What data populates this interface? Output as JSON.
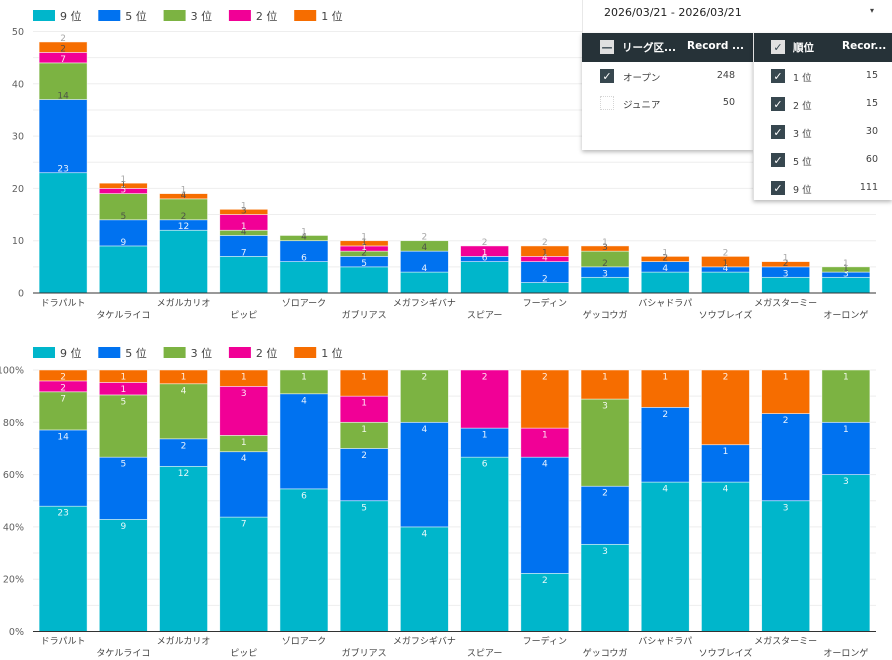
{
  "date_range": {
    "label": "2026/03/21 - 2026/03/21",
    "dropdown_icon": "triangle-down"
  },
  "filters": [
    {
      "header": "リーグ区...",
      "value_header": "Record ...",
      "header_state": "indeterminate",
      "items": [
        {
          "label": "オープン",
          "value": "248",
          "checked": true
        },
        {
          "label": "ジュニア",
          "value": "50",
          "checked": false
        }
      ]
    },
    {
      "header": "順位",
      "value_header": "Recor...",
      "header_state": "checked",
      "items": [
        {
          "label": "1 位",
          "value": "15",
          "checked": true
        },
        {
          "label": "2 位",
          "value": "15",
          "checked": true
        },
        {
          "label": "3 位",
          "value": "30",
          "checked": true
        },
        {
          "label": "5 位",
          "value": "60",
          "checked": true
        },
        {
          "label": "9 位",
          "value": "111",
          "checked": true
        }
      ]
    }
  ],
  "icons": {
    "check": "✓",
    "minus": "—",
    "dropdown": "▾"
  },
  "chart_data": [
    {
      "type": "bar",
      "stacked": true,
      "stack_mode": "absolute",
      "title": "",
      "xlabel": "",
      "ylabel": "",
      "ylim": [
        0,
        50
      ],
      "grid": true,
      "grid_step": 5,
      "yticks": [
        0,
        10,
        20,
        30,
        40,
        50
      ],
      "ytick_labels": [
        "0",
        "10",
        "20",
        "30",
        "40",
        "50"
      ],
      "legend": "top-left",
      "categories": [
        "ドラパルト",
        "タケルライコ",
        "メガルカリオ",
        "ピッピ",
        "ゾロアーク",
        "ガブリアス",
        "メガフシギバナ",
        "スピアー",
        "フーディン",
        "ゲッコウガ",
        "バシャドラパ",
        "ソウブレイズ",
        "メガスターミー",
        "オーロンゲ"
      ],
      "series": [
        {
          "name": "9 位",
          "color": "#00b6cb",
          "values": [
            23,
            9,
            12,
            7,
            6,
            5,
            4,
            6,
            2,
            3,
            4,
            4,
            3,
            3
          ]
        },
        {
          "name": "5 位",
          "color": "#0072f0",
          "values": [
            14,
            5,
            2,
            4,
            4,
            2,
            4,
            1,
            4,
            2,
            2,
            1,
            2,
            1
          ]
        },
        {
          "name": "3 位",
          "color": "#7cb342",
          "values": [
            7,
            5,
            4,
            1,
            1,
            1,
            2,
            0,
            0,
            3,
            0,
            0,
            0,
            1
          ]
        },
        {
          "name": "2 位",
          "color": "#f10096",
          "values": [
            2,
            1,
            0,
            3,
            0,
            1,
            0,
            2,
            1,
            0,
            0,
            0,
            0,
            0
          ]
        },
        {
          "name": "1 位",
          "color": "#f66d00",
          "values": [
            2,
            1,
            1,
            1,
            0,
            1,
            0,
            0,
            2,
            1,
            1,
            2,
            1,
            0
          ]
        }
      ]
    },
    {
      "type": "bar",
      "stacked": true,
      "stack_mode": "percent",
      "title": "",
      "xlabel": "",
      "ylabel": "",
      "ylim": [
        0,
        100
      ],
      "grid": true,
      "grid_step": 10,
      "yticks": [
        0,
        20,
        40,
        60,
        80,
        100
      ],
      "ytick_labels": [
        "0%",
        "20%",
        "40%",
        "60%",
        "80%",
        "100%"
      ],
      "legend": "top-left",
      "categories": [
        "ドラパルト",
        "タケルライコ",
        "メガルカリオ",
        "ピッピ",
        "ゾロアーク",
        "ガブリアス",
        "メガフシギバナ",
        "スピアー",
        "フーディン",
        "ゲッコウガ",
        "バシャドラパ",
        "ソウブレイズ",
        "メガスターミー",
        "オーロンゲ"
      ],
      "series": [
        {
          "name": "9 位",
          "color": "#00b6cb",
          "values": [
            23,
            9,
            12,
            7,
            6,
            5,
            4,
            6,
            2,
            3,
            4,
            4,
            3,
            3
          ]
        },
        {
          "name": "5 位",
          "color": "#0072f0",
          "values": [
            14,
            5,
            2,
            4,
            4,
            2,
            4,
            1,
            4,
            2,
            2,
            1,
            2,
            1
          ]
        },
        {
          "name": "3 位",
          "color": "#7cb342",
          "values": [
            7,
            5,
            4,
            1,
            1,
            1,
            2,
            0,
            0,
            3,
            0,
            0,
            0,
            1
          ]
        },
        {
          "name": "2 位",
          "color": "#f10096",
          "values": [
            2,
            1,
            0,
            3,
            0,
            1,
            0,
            2,
            1,
            0,
            0,
            0,
            0,
            0
          ]
        },
        {
          "name": "1 位",
          "color": "#f66d00",
          "values": [
            2,
            1,
            1,
            1,
            0,
            1,
            0,
            0,
            2,
            1,
            1,
            2,
            1,
            0
          ]
        }
      ]
    }
  ]
}
